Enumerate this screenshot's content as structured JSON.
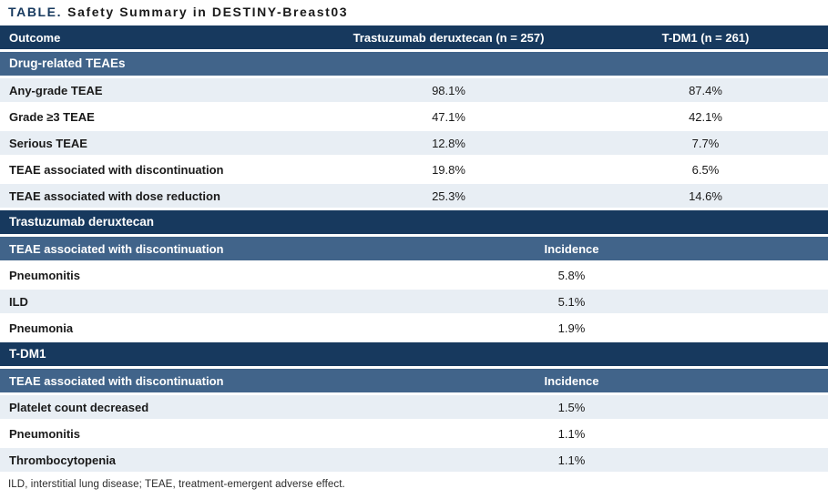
{
  "title": {
    "label": "TABLE.",
    "text": "Safety Summary in DESTINY-Breast03"
  },
  "colors": {
    "header_navy": "#17395e",
    "band_blue": "#41648a",
    "row_light": "#e8eef4",
    "row_white": "#ffffff"
  },
  "main_table": {
    "headers": [
      "Outcome",
      "Trastuzumab deruxtecan (n = 257)",
      "T-DM1 (n = 261)"
    ],
    "section": "Drug-related TEAEs",
    "rows": [
      {
        "label": "Any-grade TEAE",
        "td_value": "98.1%",
        "tdm1_value": "87.4%"
      },
      {
        "label": "Grade ≥3 TEAE",
        "td_value": "47.1%",
        "tdm1_value": "42.1%"
      },
      {
        "label": "Serious TEAE",
        "td_value": "12.8%",
        "tdm1_value": "7.7%"
      },
      {
        "label": "TEAE associated with discontinuation",
        "td_value": "19.8%",
        "tdm1_value": "6.5%"
      },
      {
        "label": "TEAE associated with dose reduction",
        "td_value": "25.3%",
        "tdm1_value": "14.6%"
      }
    ]
  },
  "sub_tables": [
    {
      "section": "Trastuzumab deruxtecan",
      "header_label": "TEAE associated with discontinuation",
      "header_value": "Incidence",
      "rows": [
        {
          "label": "Pneumonitis",
          "value": "5.8%"
        },
        {
          "label": "ILD",
          "value": "5.1%"
        },
        {
          "label": "Pneumonia",
          "value": "1.9%"
        }
      ]
    },
    {
      "section": "T-DM1",
      "header_label": "TEAE associated with discontinuation",
      "header_value": "Incidence",
      "rows": [
        {
          "label": "Platelet count decreased",
          "value": "1.5%"
        },
        {
          "label": "Pneumonitis",
          "value": "1.1%"
        },
        {
          "label": "Thrombocytopenia",
          "value": "1.1%"
        }
      ]
    }
  ],
  "footnote": "ILD, interstitial lung disease; TEAE, treatment-emergent adverse effect."
}
